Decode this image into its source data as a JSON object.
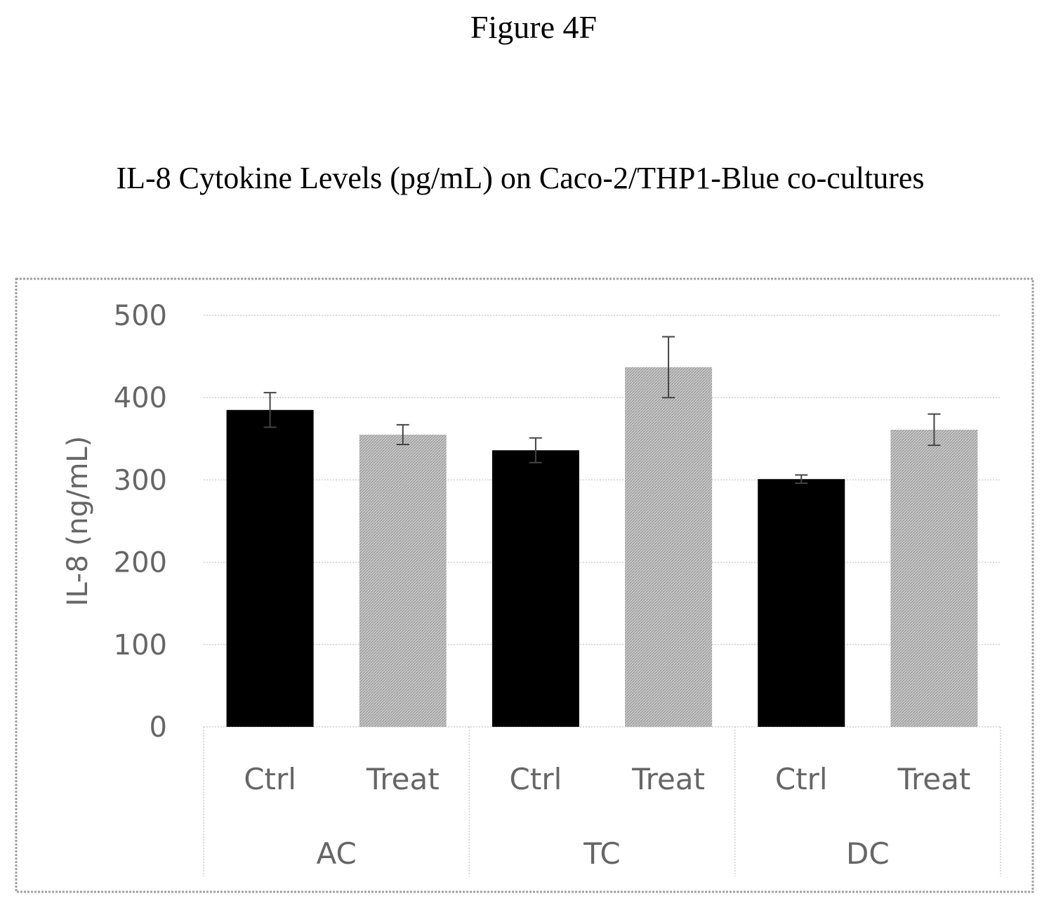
{
  "figure": {
    "label": "Figure 4F"
  },
  "chart_data": {
    "type": "bar",
    "title": "IL-8 Cytokine Levels (pg/mL) on Caco-2/THP1-Blue co-cultures",
    "xlabel": "",
    "ylabel": "IL-8 (ng/mL)",
    "ylim": [
      0,
      500
    ],
    "yticks": [
      0,
      100,
      200,
      300,
      400,
      500
    ],
    "grid": true,
    "legend": "none",
    "groups": [
      "AC",
      "TC",
      "DC"
    ],
    "categories": [
      "Ctrl",
      "Treat",
      "Ctrl",
      "Treat",
      "Ctrl",
      "Treat"
    ],
    "bars": [
      {
        "group": "AC",
        "category": "Ctrl",
        "value": 385,
        "error": 21,
        "color": "#000000",
        "pattern": "solid"
      },
      {
        "group": "AC",
        "category": "Treat",
        "value": 355,
        "error": 12,
        "color": "#bdbdbd",
        "pattern": "hatched"
      },
      {
        "group": "TC",
        "category": "Ctrl",
        "value": 336,
        "error": 15,
        "color": "#000000",
        "pattern": "solid"
      },
      {
        "group": "TC",
        "category": "Treat",
        "value": 437,
        "error": 37,
        "color": "#bdbdbd",
        "pattern": "hatched"
      },
      {
        "group": "DC",
        "category": "Ctrl",
        "value": 301,
        "error": 5,
        "color": "#000000",
        "pattern": "solid"
      },
      {
        "group": "DC",
        "category": "Treat",
        "value": 361,
        "error": 19,
        "color": "#bdbdbd",
        "pattern": "hatched"
      }
    ]
  }
}
